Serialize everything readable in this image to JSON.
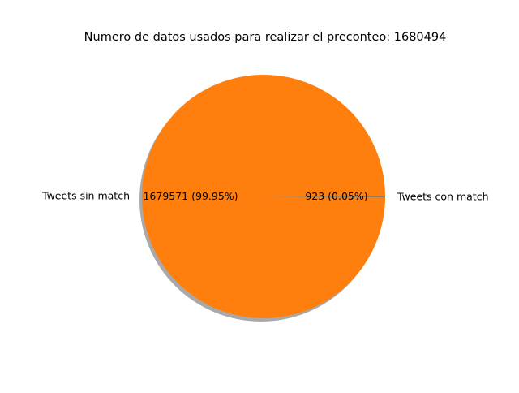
{
  "chart_data": {
    "type": "pie",
    "title": "Numero de datos usados para realizar el preconteo: 1680494",
    "slices": [
      {
        "label": "Tweets sin match",
        "value": 1679571,
        "autopct": "1679571 (99.95%)",
        "color": "#ff7f0e"
      },
      {
        "label": "Tweets con match",
        "value": 923,
        "autopct": "923 (0.05%)",
        "color": "#1f77b4"
      }
    ],
    "shadow": true,
    "shadow_color": "#a0a0a0"
  }
}
